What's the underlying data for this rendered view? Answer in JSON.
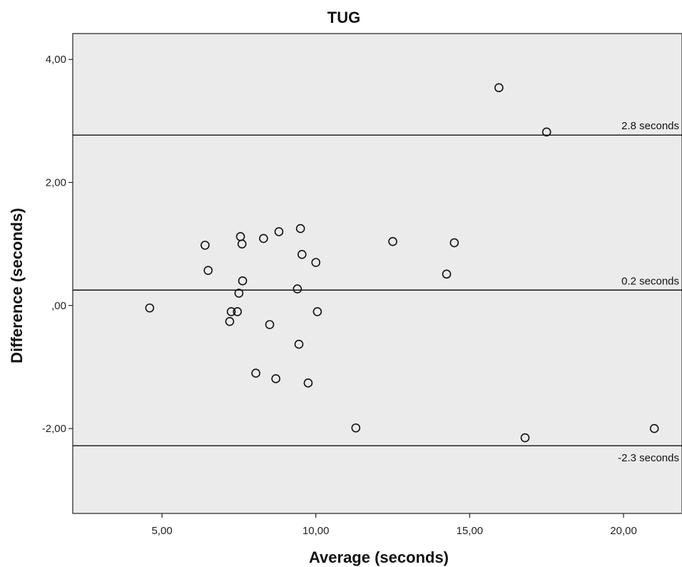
{
  "chart_data": {
    "type": "scatter",
    "title": "TUG",
    "xlabel": "Average (seconds)",
    "ylabel": "Difference (seconds)",
    "xlim": [
      2.1,
      21.9
    ],
    "ylim": [
      -3.38,
      4.42
    ],
    "xticks": [
      5,
      10,
      15,
      20
    ],
    "xtick_labels": [
      "5,00",
      "10,00",
      "15,00",
      "20,00"
    ],
    "yticks": [
      -2,
      0,
      2,
      4
    ],
    "ytick_labels": [
      "-2,00",
      ",00",
      "2,00",
      "4,00"
    ],
    "grid": false,
    "background": "#ebebeb",
    "points": [
      {
        "x": 4.6,
        "y": -0.04
      },
      {
        "x": 6.4,
        "y": 0.98
      },
      {
        "x": 6.5,
        "y": 0.57
      },
      {
        "x": 7.2,
        "y": -0.26
      },
      {
        "x": 7.25,
        "y": -0.1
      },
      {
        "x": 7.45,
        "y": -0.1
      },
      {
        "x": 7.5,
        "y": 0.2
      },
      {
        "x": 7.55,
        "y": 1.12
      },
      {
        "x": 7.6,
        "y": 1.0
      },
      {
        "x": 7.62,
        "y": 0.4
      },
      {
        "x": 8.05,
        "y": -1.1
      },
      {
        "x": 8.3,
        "y": 1.09
      },
      {
        "x": 8.5,
        "y": -0.31
      },
      {
        "x": 8.7,
        "y": -1.19
      },
      {
        "x": 8.8,
        "y": 1.2
      },
      {
        "x": 9.4,
        "y": 0.27
      },
      {
        "x": 9.45,
        "y": -0.63
      },
      {
        "x": 9.5,
        "y": 1.25
      },
      {
        "x": 9.55,
        "y": 0.83
      },
      {
        "x": 9.75,
        "y": -1.26
      },
      {
        "x": 10.0,
        "y": 0.7
      },
      {
        "x": 10.05,
        "y": -0.1
      },
      {
        "x": 11.3,
        "y": -1.99
      },
      {
        "x": 12.5,
        "y": 1.04
      },
      {
        "x": 14.25,
        "y": 0.51
      },
      {
        "x": 14.5,
        "y": 1.02
      },
      {
        "x": 15.95,
        "y": 3.54
      },
      {
        "x": 16.8,
        "y": -2.15
      },
      {
        "x": 17.5,
        "y": 2.82
      },
      {
        "x": 21.0,
        "y": -2.0
      }
    ],
    "reference_lines": [
      {
        "y": 2.77,
        "label": "2.8 seconds"
      },
      {
        "y": 0.25,
        "label": "0.2 seconds"
      },
      {
        "y": -2.28,
        "label": "-2.3 seconds"
      }
    ]
  }
}
